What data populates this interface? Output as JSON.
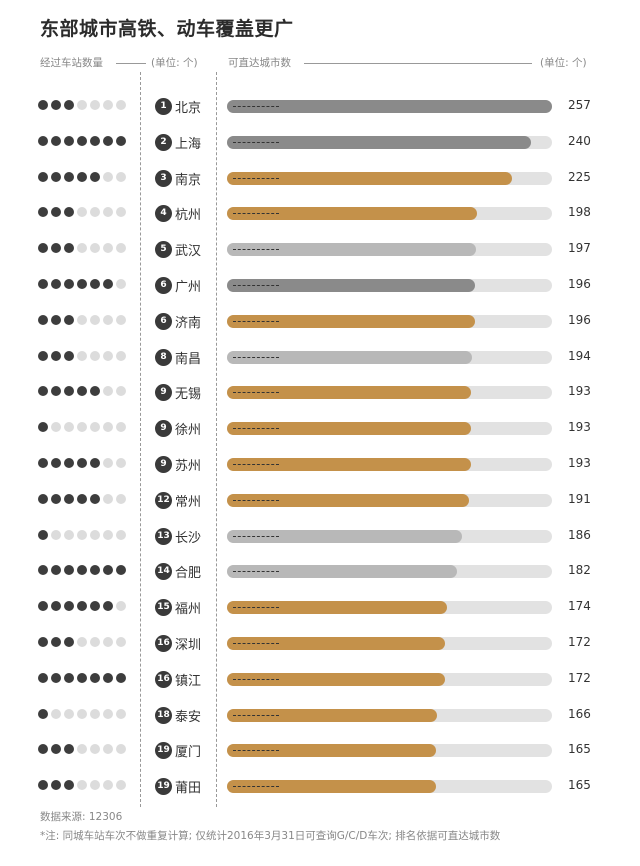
{
  "title": "东部城市高铁、动车覆盖更广",
  "header": {
    "left_label": "经过车站数量",
    "left_unit": "(单位: 个)",
    "mid_label": "可直达城市数",
    "right_unit": "(单位: 个)"
  },
  "colors": {
    "dark_gray": "#8a8a8a",
    "gold": "#c4914a",
    "light_gray": "#b8b8b8",
    "track": "#e2e2e2",
    "dot_on": "#3d3d3d",
    "dot_off": "#dcdcdc"
  },
  "chart_data": {
    "type": "bar",
    "orientation": "horizontal",
    "xlim": [
      0,
      257
    ],
    "rows": [
      {
        "rank": "1",
        "city": "北京",
        "value": 257,
        "stations": 3,
        "color": "dark_gray"
      },
      {
        "rank": "2",
        "city": "上海",
        "value": 240,
        "stations": 7,
        "color": "dark_gray"
      },
      {
        "rank": "3",
        "city": "南京",
        "value": 225,
        "stations": 5,
        "color": "gold"
      },
      {
        "rank": "4",
        "city": "杭州",
        "value": 198,
        "stations": 3,
        "color": "gold"
      },
      {
        "rank": "5",
        "city": "武汉",
        "value": 197,
        "stations": 3,
        "color": "light_gray"
      },
      {
        "rank": "6",
        "city": "广州",
        "value": 196,
        "stations": 6,
        "color": "dark_gray"
      },
      {
        "rank": "6",
        "city": "济南",
        "value": 196,
        "stations": 3,
        "color": "gold"
      },
      {
        "rank": "8",
        "city": "南昌",
        "value": 194,
        "stations": 3,
        "color": "light_gray"
      },
      {
        "rank": "9",
        "city": "无锡",
        "value": 193,
        "stations": 5,
        "color": "gold"
      },
      {
        "rank": "9",
        "city": "徐州",
        "value": 193,
        "stations": 1,
        "color": "gold"
      },
      {
        "rank": "9",
        "city": "苏州",
        "value": 193,
        "stations": 5,
        "color": "gold"
      },
      {
        "rank": "12",
        "city": "常州",
        "value": 191,
        "stations": 5,
        "color": "gold"
      },
      {
        "rank": "13",
        "city": "长沙",
        "value": 186,
        "stations": 1,
        "color": "light_gray"
      },
      {
        "rank": "14",
        "city": "合肥",
        "value": 182,
        "stations": 7,
        "color": "light_gray"
      },
      {
        "rank": "15",
        "city": "福州",
        "value": 174,
        "stations": 6,
        "color": "gold"
      },
      {
        "rank": "16",
        "city": "深圳",
        "value": 172,
        "stations": 3,
        "color": "gold"
      },
      {
        "rank": "16",
        "city": "镇江",
        "value": 172,
        "stations": 7,
        "color": "gold"
      },
      {
        "rank": "18",
        "city": "泰安",
        "value": 166,
        "stations": 1,
        "color": "gold"
      },
      {
        "rank": "19",
        "city": "厦门",
        "value": 165,
        "stations": 3,
        "color": "gold"
      },
      {
        "rank": "19",
        "city": "莆田",
        "value": 165,
        "stations": 3,
        "color": "gold"
      }
    ],
    "max_stations": 7
  },
  "footer": {
    "source": "数据来源: 12306",
    "note": "*注: 同城车站车次不做重复计算; 仅统计2016年3月31日可查询G/C/D车次; 排名依据可直达城市数"
  }
}
